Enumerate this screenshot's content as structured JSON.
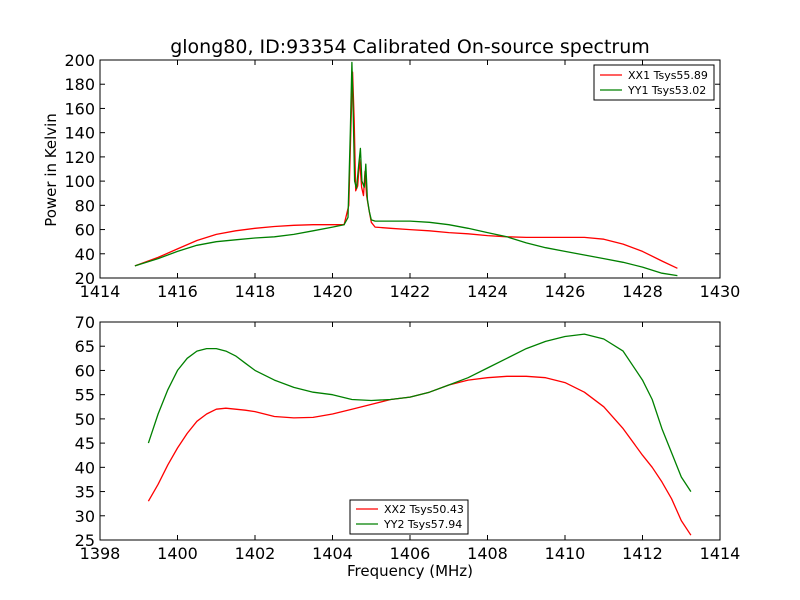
{
  "chart_data": [
    {
      "type": "line",
      "title": "glong80, ID:93354 Calibrated On-source spectrum",
      "xlabel": "",
      "ylabel": "Power in Kelvin",
      "xlim": [
        1414,
        1430
      ],
      "ylim": [
        20,
        200
      ],
      "xticks": [
        1414,
        1416,
        1418,
        1420,
        1422,
        1424,
        1426,
        1428,
        1430
      ],
      "yticks": [
        20,
        40,
        60,
        80,
        100,
        120,
        140,
        160,
        180,
        200
      ],
      "grid": false,
      "legend_position": "top-right",
      "series": [
        {
          "name": "XX1 Tsys55.89",
          "color": "#ff0000",
          "x": [
            1414.9,
            1415.5,
            1416.0,
            1416.5,
            1417.0,
            1417.5,
            1418.0,
            1418.5,
            1419.0,
            1419.5,
            1420.0,
            1420.3,
            1420.42,
            1420.48,
            1420.52,
            1420.56,
            1420.6,
            1420.65,
            1420.7,
            1420.75,
            1420.8,
            1420.84,
            1420.88,
            1420.92,
            1420.96,
            1421.0,
            1421.1,
            1421.5,
            1422.0,
            1422.5,
            1423.0,
            1423.5,
            1424.0,
            1424.5,
            1425.0,
            1425.5,
            1426.0,
            1426.5,
            1427.0,
            1427.5,
            1428.0,
            1428.5,
            1428.9
          ],
          "y": [
            30,
            37,
            44,
            51,
            56,
            59,
            61,
            62.5,
            63.5,
            64,
            64,
            64,
            80,
            150,
            190,
            150,
            92,
            96,
            118,
            95,
            88,
            108,
            88,
            80,
            73,
            66,
            62,
            61,
            60,
            59,
            57.5,
            56.5,
            55,
            54,
            53.5,
            53.5,
            53.5,
            53.5,
            52,
            48,
            42,
            34,
            28
          ]
        },
        {
          "name": "YY1 Tsys53.02",
          "color": "#008000",
          "x": [
            1414.9,
            1415.5,
            1416.0,
            1416.5,
            1417.0,
            1417.5,
            1418.0,
            1418.5,
            1419.0,
            1419.5,
            1420.0,
            1420.3,
            1420.4,
            1420.46,
            1420.5,
            1420.53,
            1420.57,
            1420.62,
            1420.68,
            1420.72,
            1420.76,
            1420.82,
            1420.86,
            1420.9,
            1420.95,
            1421.0,
            1421.1,
            1421.5,
            1422.0,
            1422.5,
            1423.0,
            1423.5,
            1424.0,
            1424.5,
            1425.0,
            1425.5,
            1426.0,
            1426.5,
            1427.0,
            1427.5,
            1428.0,
            1428.5,
            1428.9
          ],
          "y": [
            30,
            36,
            42,
            47,
            50,
            51.5,
            53,
            54,
            56,
            59,
            62,
            64,
            70,
            140,
            198,
            165,
            100,
            94,
            115,
            127,
            100,
            95,
            114,
            85,
            75,
            68,
            67,
            67,
            67,
            66,
            64,
            61,
            57.5,
            54,
            49,
            45,
            42,
            39,
            36,
            33,
            29,
            24,
            22
          ]
        }
      ]
    },
    {
      "type": "line",
      "title": "",
      "xlabel": "Frequency (MHz)",
      "ylabel": "",
      "xlim": [
        1398,
        1414
      ],
      "ylim": [
        25,
        70
      ],
      "xticks": [
        1398,
        1400,
        1402,
        1404,
        1406,
        1408,
        1410,
        1412,
        1414
      ],
      "yticks": [
        25,
        30,
        35,
        40,
        45,
        50,
        55,
        60,
        65,
        70
      ],
      "grid": false,
      "legend_position": "bottom-center",
      "series": [
        {
          "name": "XX2 Tsys50.43",
          "color": "#ff0000",
          "x": [
            1399.25,
            1399.5,
            1399.75,
            1400.0,
            1400.25,
            1400.5,
            1400.75,
            1401.0,
            1401.25,
            1401.5,
            1401.75,
            1402.0,
            1402.5,
            1403.0,
            1403.5,
            1404.0,
            1404.5,
            1405.0,
            1405.5,
            1406.0,
            1406.5,
            1407.0,
            1407.5,
            1408.0,
            1408.5,
            1409.0,
            1409.5,
            1410.0,
            1410.5,
            1411.0,
            1411.5,
            1412.0,
            1412.25,
            1412.5,
            1412.75,
            1413.0,
            1413.25
          ],
          "y": [
            33,
            36.5,
            40.5,
            44,
            47,
            49.5,
            51,
            52,
            52.2,
            52,
            51.8,
            51.5,
            50.5,
            50.2,
            50.3,
            51,
            52,
            53,
            54,
            54.5,
            55.5,
            57,
            58,
            58.5,
            58.8,
            58.8,
            58.5,
            57.5,
            55.5,
            52.5,
            48,
            42.5,
            40,
            37,
            33.5,
            29,
            26
          ]
        },
        {
          "name": "YY2 Tsys57.94",
          "color": "#008000",
          "x": [
            1399.25,
            1399.5,
            1399.75,
            1400.0,
            1400.25,
            1400.5,
            1400.75,
            1401.0,
            1401.25,
            1401.5,
            1401.75,
            1402.0,
            1402.5,
            1403.0,
            1403.5,
            1404.0,
            1404.5,
            1405.0,
            1405.5,
            1406.0,
            1406.5,
            1407.0,
            1407.5,
            1408.0,
            1408.5,
            1409.0,
            1409.5,
            1410.0,
            1410.5,
            1411.0,
            1411.5,
            1412.0,
            1412.25,
            1412.5,
            1412.75,
            1413.0,
            1413.25
          ],
          "y": [
            45,
            51,
            56,
            60,
            62.5,
            64,
            64.5,
            64.5,
            64,
            63,
            61.5,
            60,
            58,
            56.5,
            55.5,
            55,
            54,
            53.8,
            54,
            54.5,
            55.5,
            57,
            58.5,
            60.5,
            62.5,
            64.5,
            66,
            67,
            67.5,
            66.5,
            64,
            58,
            54,
            48,
            43,
            38,
            35
          ]
        }
      ]
    }
  ]
}
